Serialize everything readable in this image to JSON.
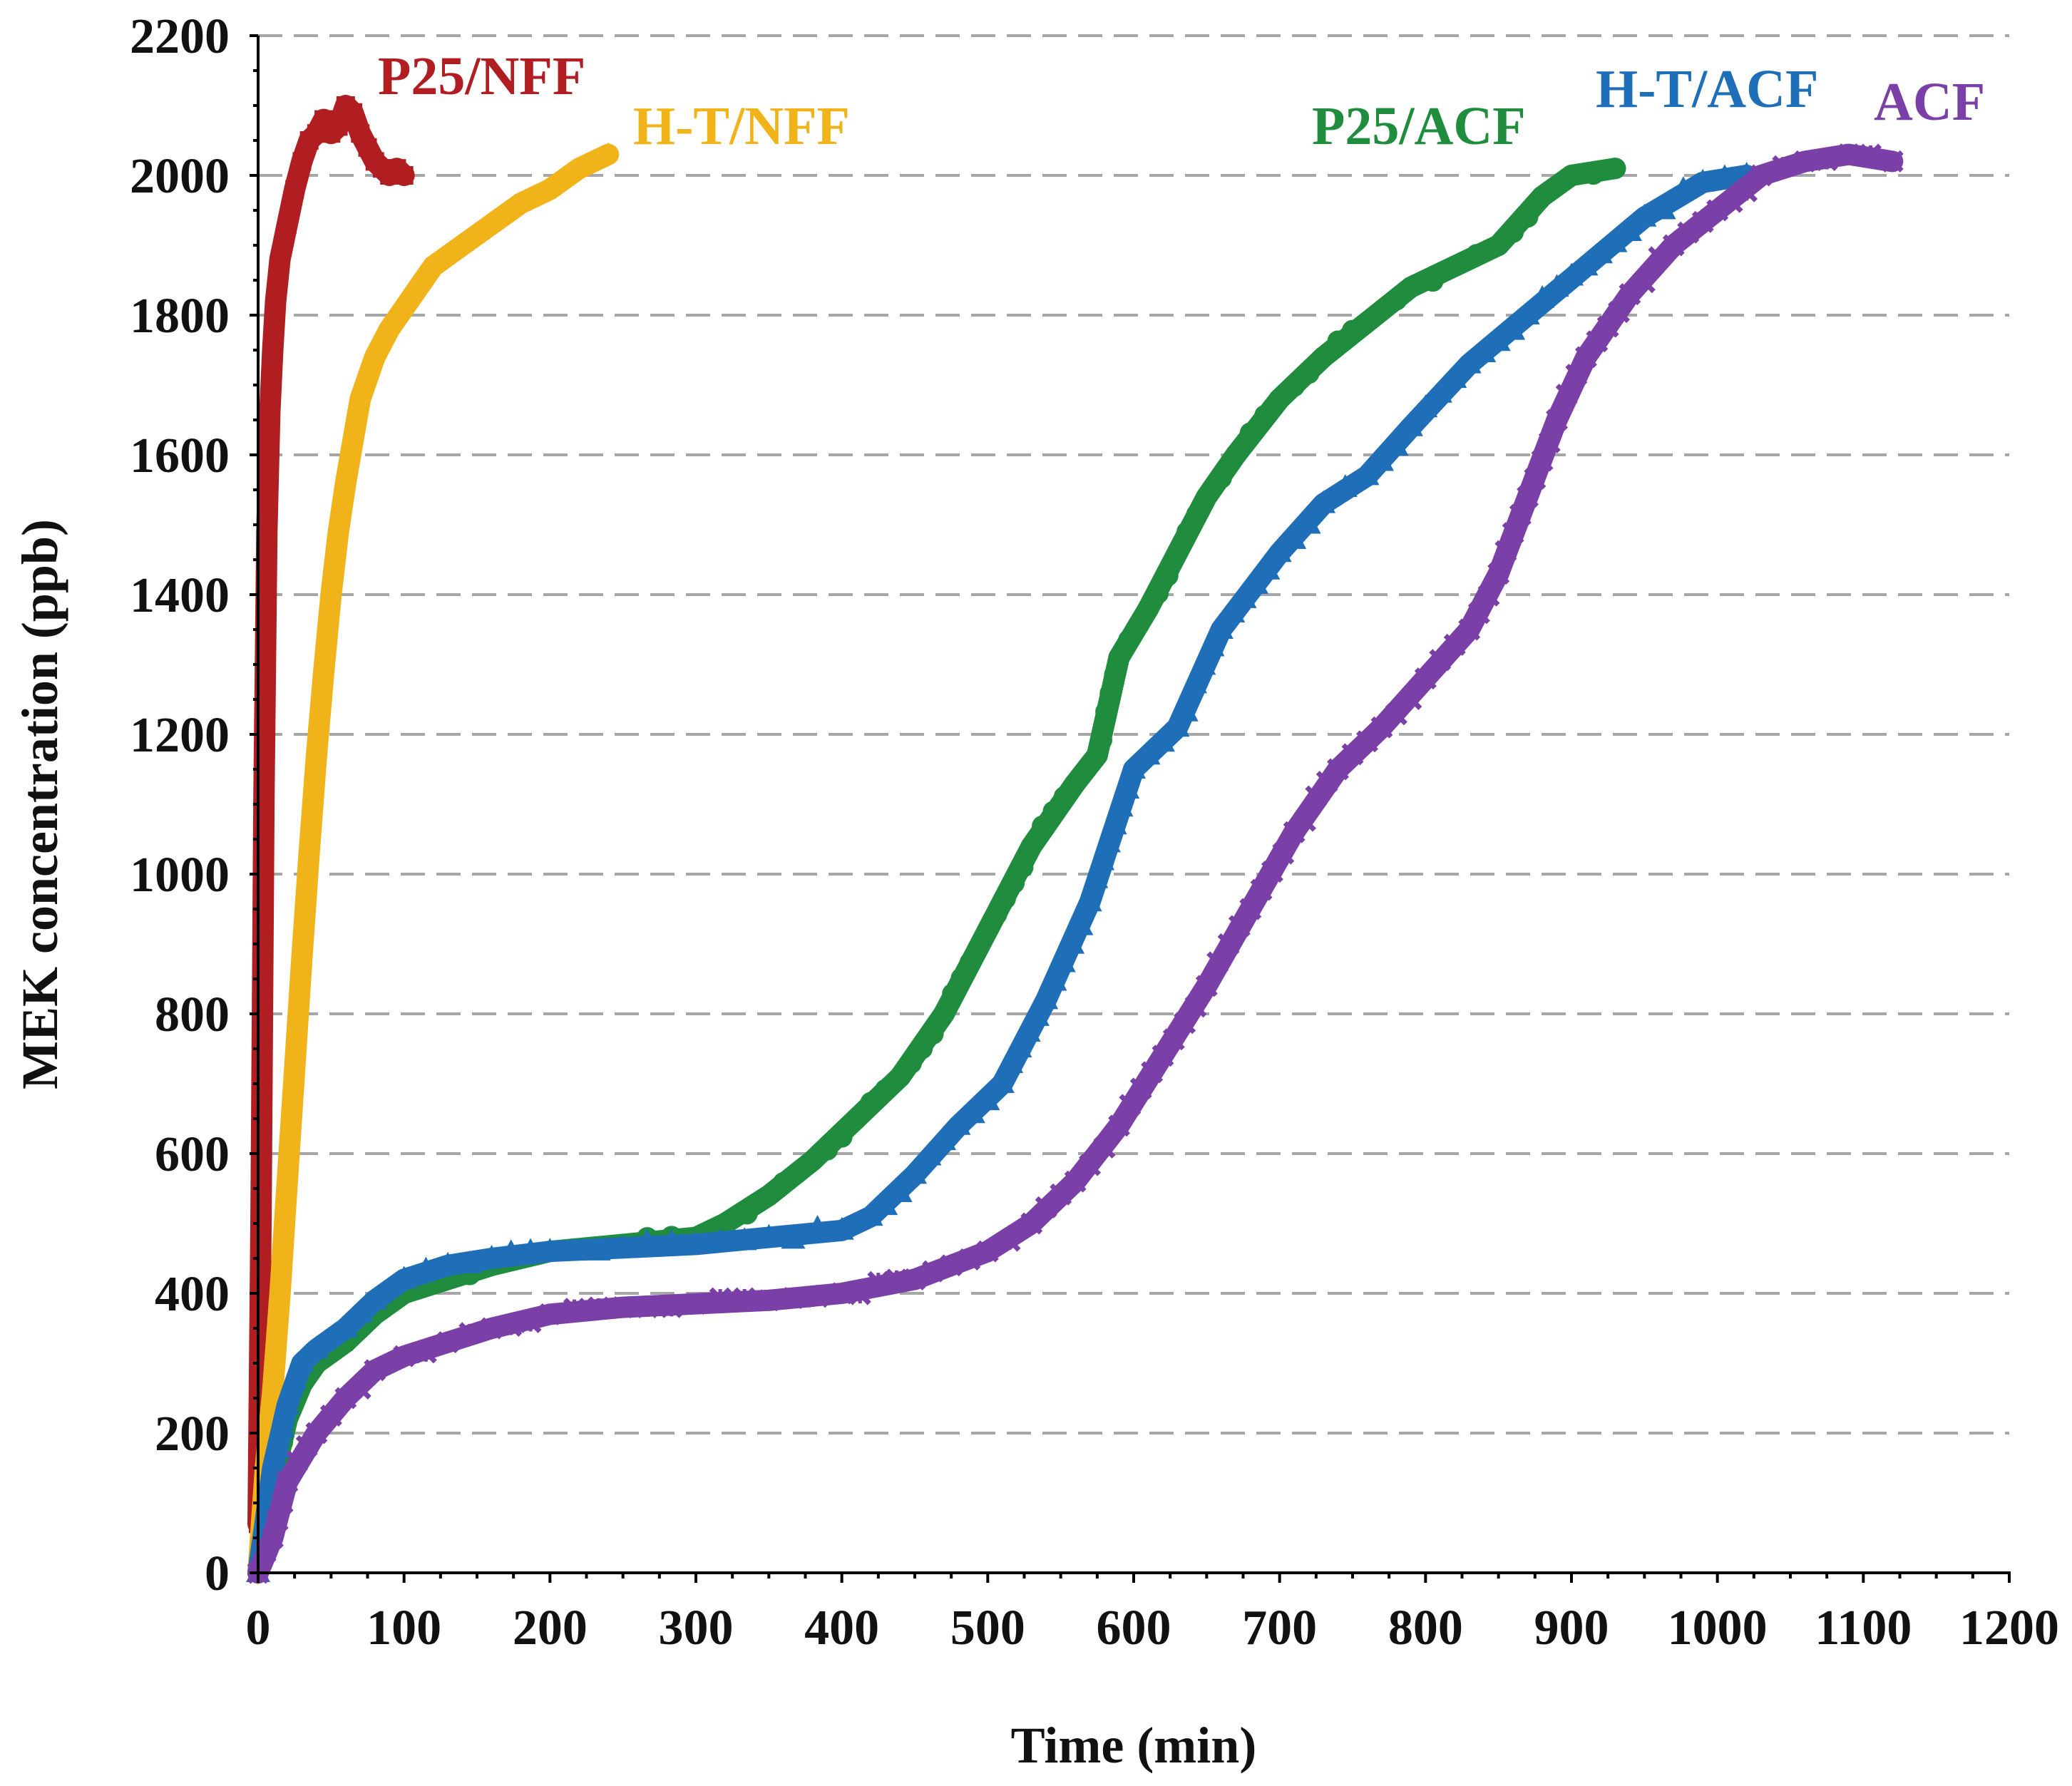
{
  "chart_data": {
    "type": "scatter",
    "title": "",
    "xlabel": "Time (min)",
    "ylabel": "MEK concentration (ppb)",
    "xlim": [
      0,
      1200
    ],
    "ylim": [
      0,
      2200
    ],
    "xticks": [
      0,
      100,
      200,
      300,
      400,
      500,
      600,
      700,
      800,
      900,
      1000,
      1100,
      1200
    ],
    "yticks": [
      0,
      200,
      400,
      600,
      800,
      1000,
      1200,
      1400,
      1600,
      1800,
      2000,
      2200
    ],
    "grid": "horizontal dashed",
    "series": [
      {
        "name": "P25/NFF",
        "color": "#b01e22",
        "marker": "square",
        "points": [
          [
            0,
            70
          ],
          [
            2,
            510
          ],
          [
            4,
            1110
          ],
          [
            6,
            1490
          ],
          [
            8,
            1660
          ],
          [
            10,
            1750
          ],
          [
            12,
            1820
          ],
          [
            15,
            1880
          ],
          [
            20,
            1930
          ],
          [
            25,
            1980
          ],
          [
            30,
            2020
          ],
          [
            35,
            2050
          ],
          [
            40,
            2060
          ],
          [
            45,
            2080
          ],
          [
            50,
            2060
          ],
          [
            55,
            2070
          ],
          [
            60,
            2100
          ],
          [
            65,
            2090
          ],
          [
            70,
            2060
          ],
          [
            75,
            2040
          ],
          [
            80,
            2020
          ],
          [
            85,
            2010
          ],
          [
            90,
            2000
          ],
          [
            95,
            2010
          ],
          [
            100,
            2000
          ]
        ]
      },
      {
        "name": "H-T/NFF",
        "color": "#f0b31a",
        "marker": "diamond",
        "points": [
          [
            0,
            0
          ],
          [
            5,
            150
          ],
          [
            10,
            260
          ],
          [
            15,
            400
          ],
          [
            20,
            560
          ],
          [
            25,
            720
          ],
          [
            30,
            880
          ],
          [
            35,
            1030
          ],
          [
            40,
            1170
          ],
          [
            45,
            1290
          ],
          [
            50,
            1400
          ],
          [
            55,
            1490
          ],
          [
            60,
            1560
          ],
          [
            65,
            1620
          ],
          [
            70,
            1680
          ],
          [
            80,
            1740
          ],
          [
            90,
            1780
          ],
          [
            100,
            1810
          ],
          [
            110,
            1840
          ],
          [
            120,
            1870
          ],
          [
            140,
            1900
          ],
          [
            160,
            1930
          ],
          [
            180,
            1960
          ],
          [
            200,
            1980
          ],
          [
            220,
            2010
          ],
          [
            240,
            2030
          ]
        ]
      },
      {
        "name": "P25/ACF",
        "color": "#1f8c3e",
        "marker": "circle",
        "points": [
          [
            0,
            0
          ],
          [
            10,
            130
          ],
          [
            20,
            220
          ],
          [
            30,
            270
          ],
          [
            40,
            300
          ],
          [
            60,
            330
          ],
          [
            80,
            370
          ],
          [
            100,
            400
          ],
          [
            130,
            420
          ],
          [
            160,
            440
          ],
          [
            200,
            460
          ],
          [
            250,
            470
          ],
          [
            300,
            480
          ],
          [
            320,
            500
          ],
          [
            350,
            540
          ],
          [
            380,
            590
          ],
          [
            410,
            650
          ],
          [
            440,
            710
          ],
          [
            470,
            800
          ],
          [
            500,
            920
          ],
          [
            530,
            1040
          ],
          [
            560,
            1130
          ],
          [
            575,
            1170
          ],
          [
            590,
            1310
          ],
          [
            610,
            1380
          ],
          [
            630,
            1460
          ],
          [
            650,
            1540
          ],
          [
            670,
            1600
          ],
          [
            700,
            1680
          ],
          [
            730,
            1740
          ],
          [
            760,
            1790
          ],
          [
            790,
            1840
          ],
          [
            820,
            1870
          ],
          [
            850,
            1900
          ],
          [
            880,
            1970
          ],
          [
            900,
            2000
          ],
          [
            930,
            2010
          ]
        ]
      },
      {
        "name": "H-T/ACF",
        "color": "#1f6fb8",
        "marker": "triangle",
        "points": [
          [
            0,
            0
          ],
          [
            10,
            150
          ],
          [
            20,
            240
          ],
          [
            30,
            300
          ],
          [
            40,
            320
          ],
          [
            60,
            350
          ],
          [
            80,
            390
          ],
          [
            100,
            420
          ],
          [
            130,
            440
          ],
          [
            160,
            450
          ],
          [
            200,
            460
          ],
          [
            250,
            465
          ],
          [
            300,
            470
          ],
          [
            350,
            480
          ],
          [
            400,
            490
          ],
          [
            420,
            510
          ],
          [
            450,
            570
          ],
          [
            480,
            640
          ],
          [
            510,
            700
          ],
          [
            540,
            820
          ],
          [
            570,
            960
          ],
          [
            600,
            1150
          ],
          [
            630,
            1210
          ],
          [
            660,
            1350
          ],
          [
            700,
            1460
          ],
          [
            730,
            1530
          ],
          [
            760,
            1570
          ],
          [
            790,
            1640
          ],
          [
            830,
            1730
          ],
          [
            870,
            1800
          ],
          [
            910,
            1870
          ],
          [
            950,
            1940
          ],
          [
            990,
            1990
          ],
          [
            1020,
            2000
          ]
        ]
      },
      {
        "name": "ACF",
        "color": "#7b3fa8",
        "marker": "cross",
        "points": [
          [
            0,
            0
          ],
          [
            10,
            50
          ],
          [
            20,
            130
          ],
          [
            40,
            200
          ],
          [
            60,
            250
          ],
          [
            80,
            290
          ],
          [
            100,
            310
          ],
          [
            130,
            330
          ],
          [
            160,
            350
          ],
          [
            200,
            370
          ],
          [
            250,
            380
          ],
          [
            300,
            385
          ],
          [
            350,
            390
          ],
          [
            400,
            400
          ],
          [
            450,
            420
          ],
          [
            500,
            460
          ],
          [
            530,
            500
          ],
          [
            560,
            560
          ],
          [
            590,
            640
          ],
          [
            620,
            740
          ],
          [
            650,
            840
          ],
          [
            680,
            950
          ],
          [
            710,
            1060
          ],
          [
            740,
            1150
          ],
          [
            770,
            1210
          ],
          [
            800,
            1280
          ],
          [
            830,
            1350
          ],
          [
            850,
            1430
          ],
          [
            870,
            1540
          ],
          [
            890,
            1650
          ],
          [
            910,
            1740
          ],
          [
            940,
            1830
          ],
          [
            970,
            1900
          ],
          [
            1000,
            1950
          ],
          [
            1030,
            2000
          ],
          [
            1060,
            2020
          ],
          [
            1090,
            2030
          ],
          [
            1120,
            2020
          ]
        ]
      }
    ]
  }
}
